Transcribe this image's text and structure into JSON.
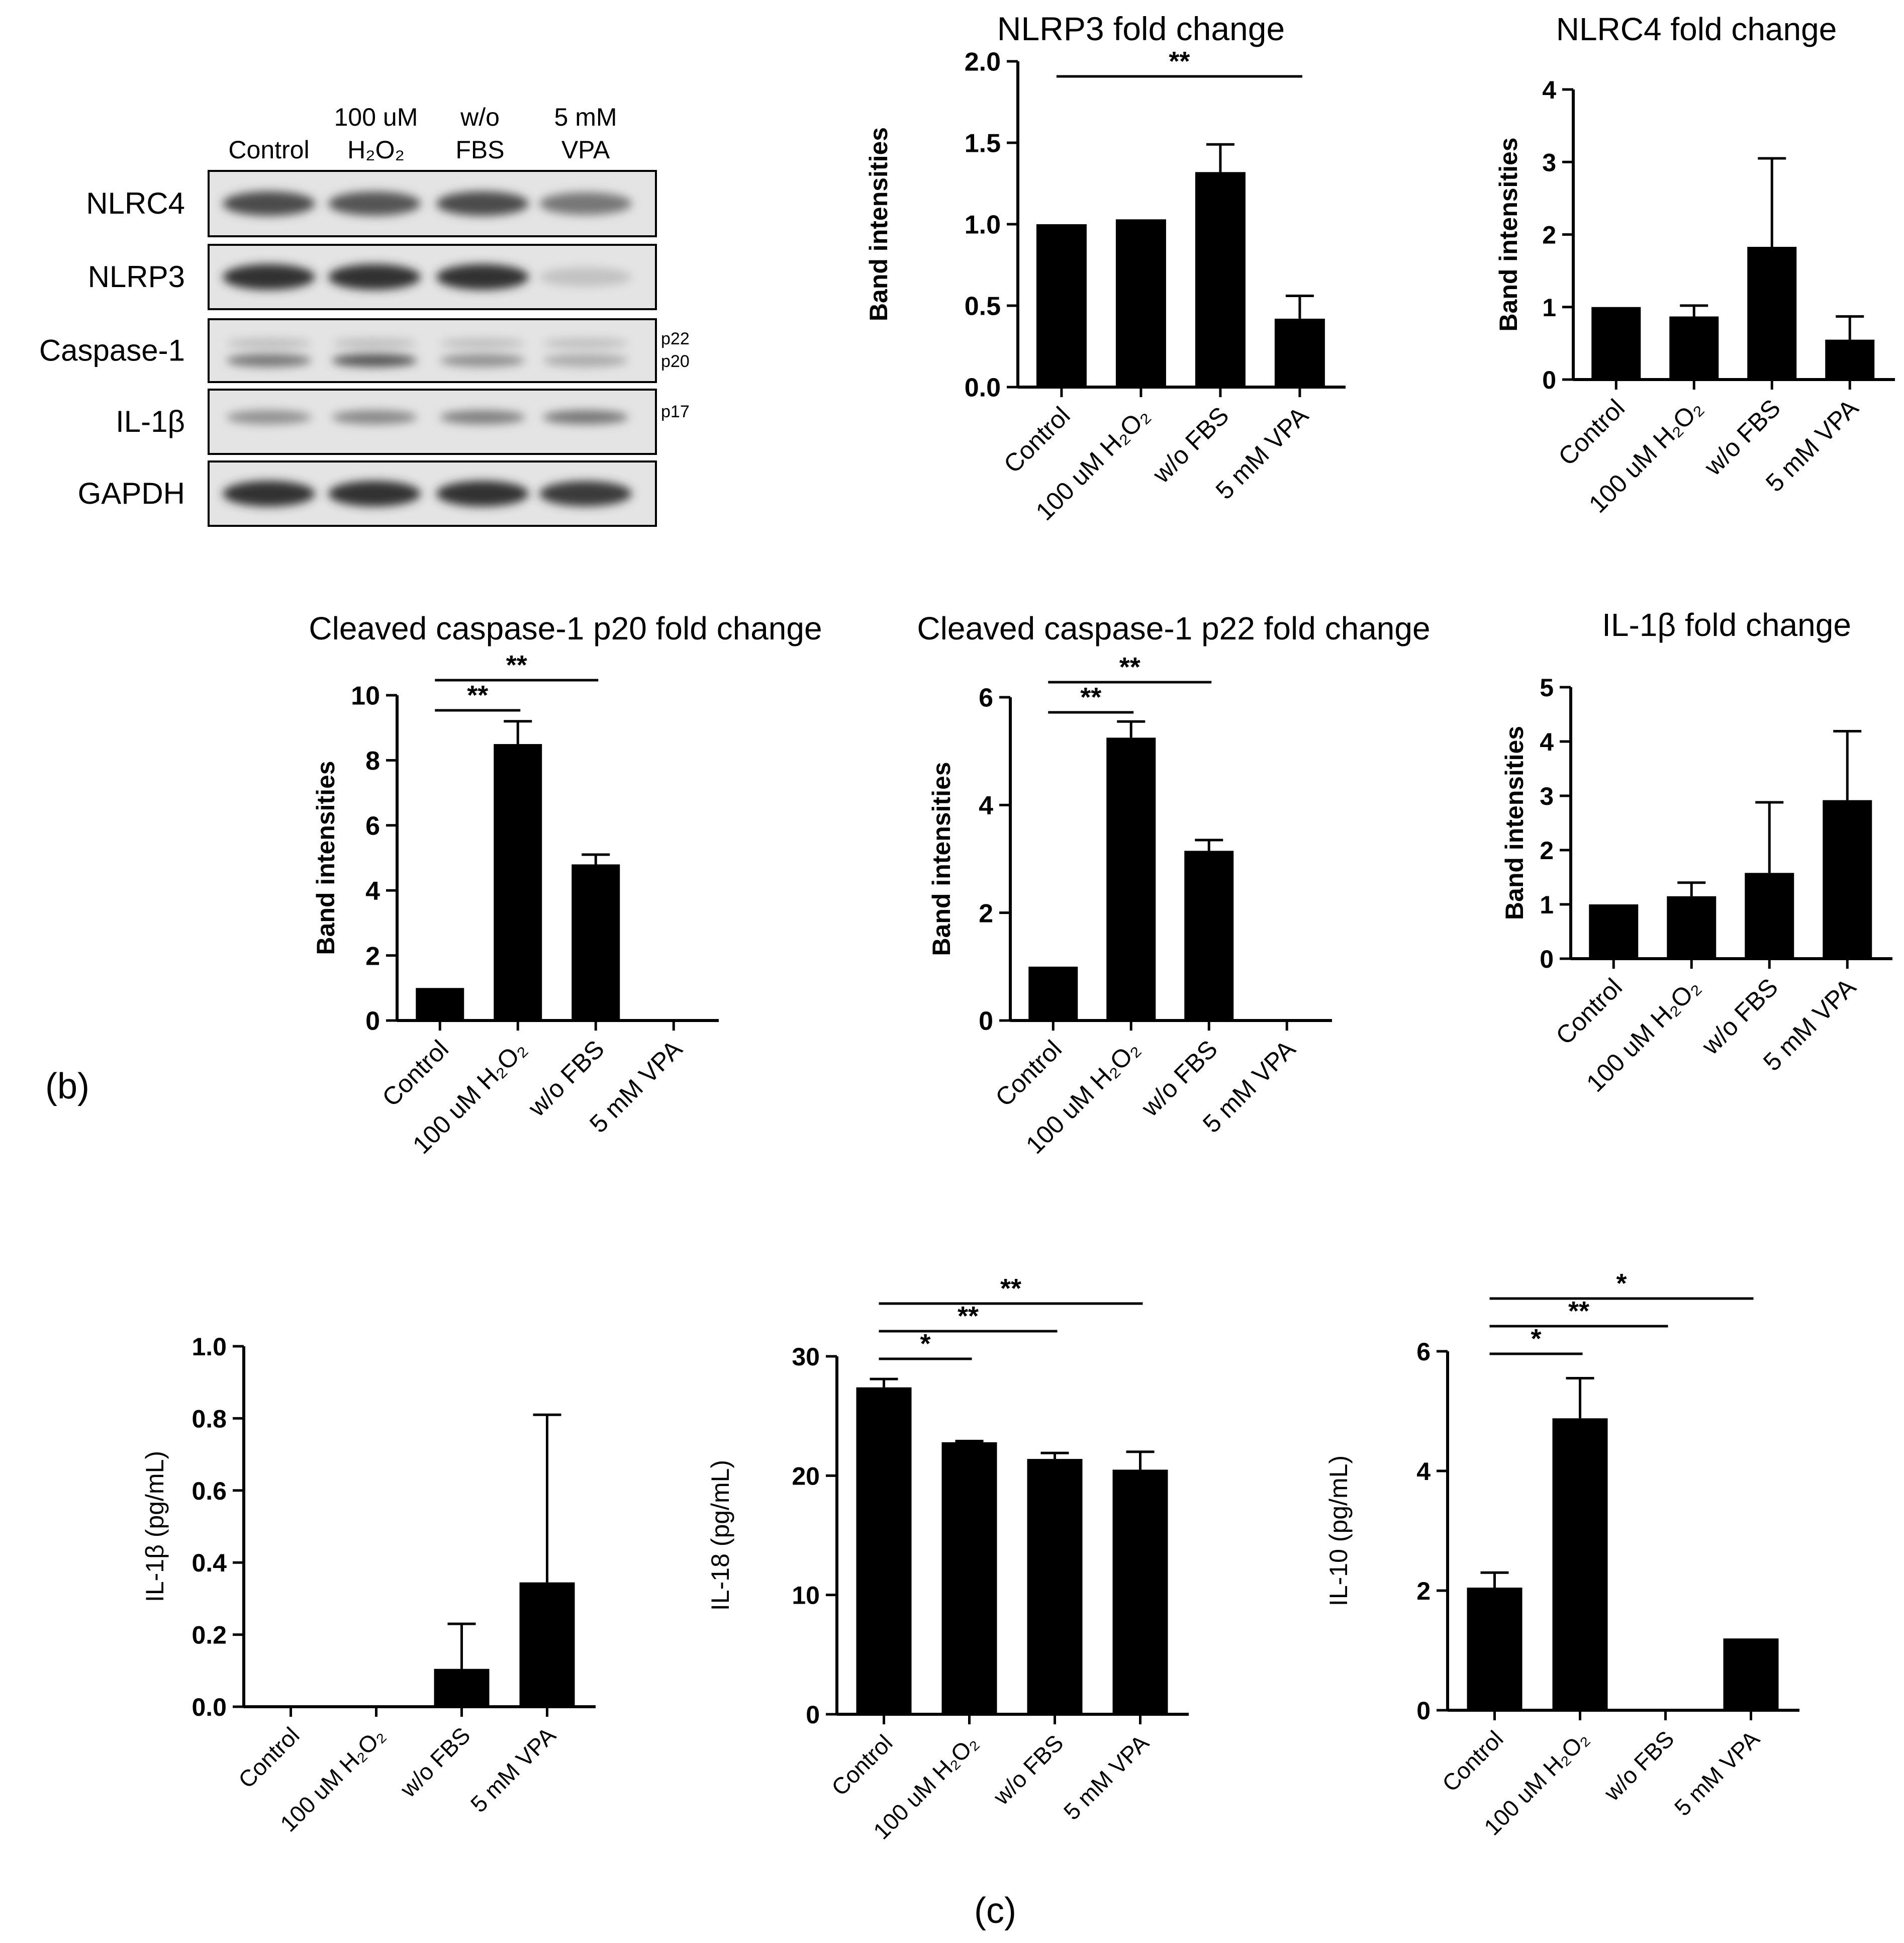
{
  "panel_labels": {
    "b": "(b)",
    "c": "(c)"
  },
  "blot": {
    "lanes": [
      {
        "line1": "Control",
        "line2": ""
      },
      {
        "line1": "100 uM",
        "line2": "H₂O₂"
      },
      {
        "line1": "w/o",
        "line2": "FBS"
      },
      {
        "line1": "5 mM",
        "line2": "VPA"
      }
    ],
    "rows": [
      {
        "label": "NLRC4",
        "bands": [
          0.8,
          0.75,
          0.8,
          0.55
        ],
        "side": []
      },
      {
        "label": "NLRP3",
        "bands": [
          0.95,
          0.95,
          0.95,
          0.12
        ],
        "side": []
      },
      {
        "label": "Caspase-1",
        "bands": [
          0.55,
          0.75,
          0.4,
          0.25
        ],
        "side": [
          "p22",
          "p20"
        ]
      },
      {
        "label": "IL-1β",
        "bands": [
          0.4,
          0.45,
          0.5,
          0.55
        ],
        "side": [
          "p17"
        ]
      },
      {
        "label": "GAPDH",
        "bands": [
          0.95,
          0.95,
          0.95,
          0.9
        ],
        "side": []
      }
    ]
  },
  "chart_data": [
    {
      "id": "nlrp3",
      "type": "bar",
      "title": "NLRP3 fold change",
      "ylabel": "Band intensities",
      "xlabel": "",
      "categories": [
        "Control",
        "100 uM H₂O₂",
        "w/o FBS",
        "5 mM VPA"
      ],
      "values": [
        1.0,
        1.03,
        1.32,
        0.42
      ],
      "errors": [
        0,
        0,
        0.17,
        0.14
      ],
      "ylim": [
        0,
        2.0
      ],
      "yticks": [
        0.0,
        0.5,
        1.0,
        1.5,
        2.0
      ],
      "ytick_labels": [
        "0.0",
        "0.5",
        "1.0",
        "1.5",
        "2.0"
      ],
      "significance": [
        {
          "from": 0,
          "to": 3,
          "label": "**"
        }
      ]
    },
    {
      "id": "nlrc4",
      "type": "bar",
      "title": "NLRC4 fold change",
      "ylabel": "Band intensities",
      "xlabel": "",
      "categories": [
        "Control",
        "100 uM H₂O₂",
        "w/o FBS",
        "5 mM VPA"
      ],
      "values": [
        1.0,
        0.87,
        1.83,
        0.55
      ],
      "errors": [
        0,
        0.15,
        1.22,
        0.32
      ],
      "ylim": [
        0,
        4
      ],
      "yticks": [
        0,
        1,
        2,
        3,
        4
      ],
      "ytick_labels": [
        "0",
        "1",
        "2",
        "3",
        "4"
      ],
      "significance": []
    },
    {
      "id": "p20",
      "type": "bar",
      "title": "Cleaved caspase-1 p20 fold change",
      "ylabel": "Band intensities",
      "xlabel": "",
      "categories": [
        "Control",
        "100 uM H₂O₂",
        "w/o FBS",
        "5 mM VPA"
      ],
      "values": [
        1.0,
        8.5,
        4.8,
        0
      ],
      "errors": [
        0,
        0.7,
        0.3,
        0
      ],
      "ylim": [
        0,
        10
      ],
      "yticks": [
        0,
        2,
        4,
        6,
        8,
        10
      ],
      "ytick_labels": [
        "0",
        "2",
        "4",
        "6",
        "8",
        "10"
      ],
      "significance": [
        {
          "from": 0,
          "to": 1,
          "label": "**"
        },
        {
          "from": 0,
          "to": 2,
          "label": "**"
        }
      ]
    },
    {
      "id": "p22",
      "type": "bar",
      "title": "Cleaved caspase-1 p22 fold change",
      "ylabel": "Band intensities",
      "xlabel": "",
      "categories": [
        "Control",
        "100 uM H₂O₂",
        "w/o FBS",
        "5 mM VPA"
      ],
      "values": [
        1.0,
        5.25,
        3.15,
        0
      ],
      "errors": [
        0,
        0.3,
        0.2,
        0
      ],
      "ylim": [
        0,
        6
      ],
      "yticks": [
        0,
        2,
        4,
        6
      ],
      "ytick_labels": [
        "0",
        "2",
        "4",
        "6"
      ],
      "significance": [
        {
          "from": 0,
          "to": 1,
          "label": "**"
        },
        {
          "from": 0,
          "to": 2,
          "label": "**"
        }
      ]
    },
    {
      "id": "il1b_fold",
      "type": "bar",
      "title": "IL-1β fold change",
      "ylabel": "Band intensities",
      "xlabel": "",
      "categories": [
        "Control",
        "100 uM H₂O₂",
        "w/o FBS",
        "5 mM VPA"
      ],
      "values": [
        1.0,
        1.15,
        1.58,
        2.92
      ],
      "errors": [
        0,
        0.25,
        1.3,
        1.27
      ],
      "ylim": [
        0,
        5
      ],
      "yticks": [
        0,
        1,
        2,
        3,
        4,
        5
      ],
      "ytick_labels": [
        "0",
        "1",
        "2",
        "3",
        "4",
        "5"
      ],
      "significance": []
    },
    {
      "id": "il1b_pg",
      "type": "bar",
      "title": "",
      "ylabel": "IL-1β (pg/mL)",
      "xlabel": "",
      "categories": [
        "Control",
        "100 uM H₂O₂",
        "w/o FBS",
        "5 mM VPA"
      ],
      "values": [
        0,
        0,
        0.105,
        0.345
      ],
      "errors": [
        0,
        0,
        0.125,
        0.465
      ],
      "ylim": [
        0,
        1.0
      ],
      "yticks": [
        0.0,
        0.2,
        0.4,
        0.6,
        0.8,
        1.0
      ],
      "ytick_labels": [
        "0.0",
        "0.2",
        "0.4",
        "0.6",
        "0.8",
        "1.0"
      ],
      "significance": []
    },
    {
      "id": "il18",
      "type": "bar",
      "title": "",
      "ylabel": "IL-18 (pg/mL)",
      "xlabel": "",
      "categories": [
        "Control",
        "100 uM H₂O₂",
        "w/o FBS",
        "5 mM VPA"
      ],
      "values": [
        27.4,
        22.8,
        21.4,
        20.5
      ],
      "errors": [
        0.7,
        0.1,
        0.5,
        1.5
      ],
      "ylim": [
        0,
        30
      ],
      "yticks": [
        0,
        10,
        20,
        30
      ],
      "ytick_labels": [
        "0",
        "10",
        "20",
        "30"
      ],
      "significance": [
        {
          "from": 0,
          "to": 1,
          "label": "*"
        },
        {
          "from": 0,
          "to": 2,
          "label": "**"
        },
        {
          "from": 0,
          "to": 3,
          "label": "**"
        }
      ]
    },
    {
      "id": "il10",
      "type": "bar",
      "title": "",
      "ylabel": "IL-10 (pg/mL)",
      "xlabel": "",
      "categories": [
        "Control",
        "100 uM H₂O₂",
        "w/o FBS",
        "5 mM VPA"
      ],
      "values": [
        2.05,
        4.88,
        0,
        1.2
      ],
      "errors": [
        0.25,
        0.67,
        0,
        0
      ],
      "ylim": [
        0,
        6
      ],
      "yticks": [
        0,
        2,
        4,
        6
      ],
      "ytick_labels": [
        "0",
        "2",
        "4",
        "6"
      ],
      "significance": [
        {
          "from": 0,
          "to": 1,
          "label": "*"
        },
        {
          "from": 0,
          "to": 2,
          "label": "**"
        },
        {
          "from": 0,
          "to": 3,
          "label": "*"
        }
      ]
    }
  ]
}
